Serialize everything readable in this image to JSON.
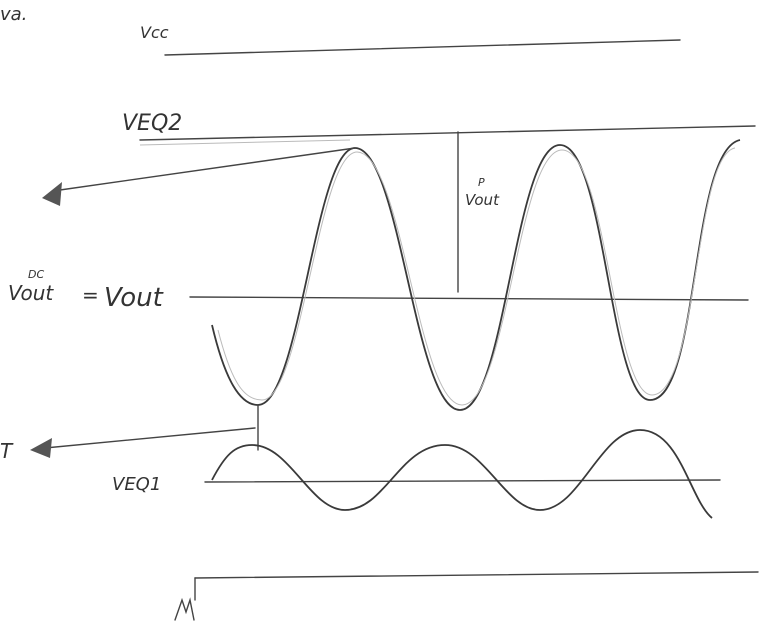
{
  "labels": {
    "top_fragment": "va.",
    "vcc": "Vcc",
    "veq2": "VEQ2",
    "vout_peak": {
      "superscript": "P",
      "main": "Vout"
    },
    "vout_dc": {
      "main": "Vout",
      "superscript": "DC",
      "equals": "=",
      "rhs": "Vout"
    },
    "left_marker": "T",
    "veq1": "VEQ1"
  }
}
